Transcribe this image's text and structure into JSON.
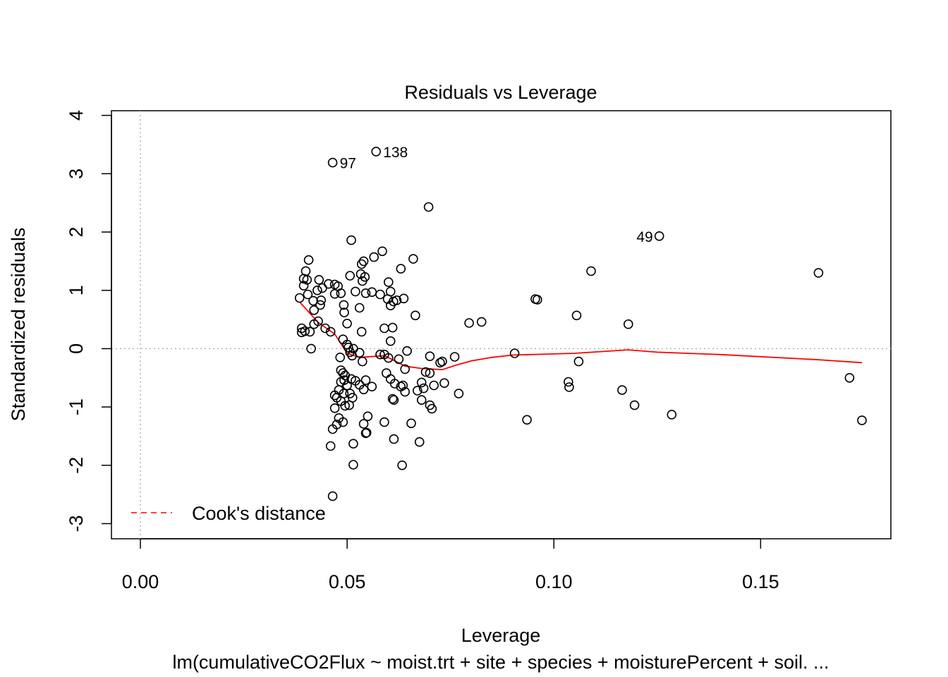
{
  "chart_data": {
    "type": "scatter",
    "title": "Residuals vs Leverage",
    "xlabel": "Leverage",
    "ylabel": "Standardized residuals",
    "subtitle": "lm(cumulativeCO2Flux ~ moist.trt + site + species + moisturePercent + soil. ...",
    "xlim": [
      -0.007,
      0.1815
    ],
    "ylim": [
      -3.26,
      4.08
    ],
    "x_ticks": [
      0.0,
      0.05,
      0.1,
      0.15
    ],
    "x_tick_labels": [
      "0.00",
      "0.05",
      "0.10",
      "0.15"
    ],
    "y_ticks": [
      -3,
      -2,
      -1,
      0,
      1,
      2,
      3,
      4
    ],
    "y_tick_labels": [
      "-3",
      "-2",
      "-1",
      "0",
      "1",
      "2",
      "3",
      "4"
    ],
    "grid": false,
    "reference_lines": {
      "x": 0,
      "y": 0,
      "style": "dotted",
      "color": "#b3b3b3"
    },
    "point_style": {
      "shape": "open-circle",
      "color": "#000000"
    },
    "points": [
      [
        0.0385,
        0.87
      ],
      [
        0.039,
        0.28
      ],
      [
        0.039,
        0.35
      ],
      [
        0.0395,
        1.08
      ],
      [
        0.0395,
        1.2
      ],
      [
        0.0398,
        0.3
      ],
      [
        0.04,
        1.33
      ],
      [
        0.0403,
        1.18
      ],
      [
        0.0405,
        0.93
      ],
      [
        0.0407,
        1.52
      ],
      [
        0.041,
        0.29
      ],
      [
        0.0413,
        0.0
      ],
      [
        0.0418,
        0.82
      ],
      [
        0.042,
        0.66
      ],
      [
        0.042,
        0.42
      ],
      [
        0.0428,
        1.0
      ],
      [
        0.043,
        0.47
      ],
      [
        0.0432,
        1.18
      ],
      [
        0.0435,
        0.75
      ],
      [
        0.0437,
        0.83
      ],
      [
        0.044,
        1.04
      ],
      [
        0.0447,
        0.35
      ],
      [
        0.0455,
        1.11
      ],
      [
        0.046,
        0.29
      ],
      [
        0.047,
        0.94
      ],
      [
        0.047,
        1.1
      ],
      [
        0.0478,
        1.07
      ],
      [
        0.0485,
        0.95
      ],
      [
        0.0492,
        0.75
      ],
      [
        0.0493,
        0.62
      ],
      [
        0.05,
        0.43
      ],
      [
        0.0507,
        1.25
      ],
      [
        0.051,
        1.86
      ],
      [
        0.052,
        0.98
      ],
      [
        0.053,
        0.7
      ],
      [
        0.0533,
        1.28
      ],
      [
        0.0535,
        1.45
      ],
      [
        0.0537,
        1.16
      ],
      [
        0.054,
        1.5
      ],
      [
        0.0543,
        1.23
      ],
      [
        0.0545,
        0.95
      ],
      [
        0.0535,
        0.29
      ],
      [
        0.056,
        0.97
      ],
      [
        0.0565,
        1.57
      ],
      [
        0.058,
        0.93
      ],
      [
        0.0585,
        1.67
      ],
      [
        0.059,
        0.35
      ],
      [
        0.0598,
        0.85
      ],
      [
        0.06,
        1.14
      ],
      [
        0.0605,
        0.98
      ],
      [
        0.0605,
        0.74
      ],
      [
        0.061,
        0.36
      ],
      [
        0.0612,
        0.81
      ],
      [
        0.062,
        0.83
      ],
      [
        0.063,
        1.37
      ],
      [
        0.0637,
        0.86
      ],
      [
        0.066,
        1.54
      ],
      [
        0.0665,
        0.57
      ],
      [
        0.0795,
        0.44
      ],
      [
        0.0825,
        0.46
      ],
      [
        0.0955,
        0.85
      ],
      [
        0.096,
        0.84
      ],
      [
        0.1055,
        0.57
      ],
      [
        0.109,
        1.33
      ],
      [
        0.118,
        0.42
      ],
      [
        0.164,
        1.3
      ],
      [
        0.0465,
        3.19
      ],
      [
        0.057,
        3.38
      ],
      [
        0.0697,
        2.43
      ],
      [
        0.1255,
        1.93
      ],
      [
        0.049,
        0.16
      ],
      [
        0.05,
        0.07
      ],
      [
        0.0503,
        0.02
      ],
      [
        0.0507,
        -0.06
      ],
      [
        0.0512,
        -0.12
      ],
      [
        0.0515,
        0.0
      ],
      [
        0.0483,
        -0.15
      ],
      [
        0.053,
        -0.07
      ],
      [
        0.0537,
        -0.22
      ],
      [
        0.058,
        -0.1
      ],
      [
        0.059,
        -0.1
      ],
      [
        0.06,
        -0.16
      ],
      [
        0.0605,
        0.13
      ],
      [
        0.0625,
        -0.18
      ],
      [
        0.064,
        -0.35
      ],
      [
        0.0645,
        -0.04
      ],
      [
        0.07,
        -0.13
      ],
      [
        0.0725,
        -0.24
      ],
      [
        0.073,
        -0.22
      ],
      [
        0.076,
        -0.14
      ],
      [
        0.0905,
        -0.08
      ],
      [
        0.106,
        -0.22
      ],
      [
        0.0485,
        -0.37
      ],
      [
        0.049,
        -0.42
      ],
      [
        0.0495,
        -0.46
      ],
      [
        0.0485,
        -0.57
      ],
      [
        0.0493,
        -0.54
      ],
      [
        0.05,
        -0.63
      ],
      [
        0.051,
        -0.52
      ],
      [
        0.052,
        -0.55
      ],
      [
        0.053,
        -0.62
      ],
      [
        0.0545,
        -0.54
      ],
      [
        0.056,
        -0.65
      ],
      [
        0.0595,
        -0.42
      ],
      [
        0.0605,
        -0.52
      ],
      [
        0.0615,
        -0.6
      ],
      [
        0.063,
        -0.65
      ],
      [
        0.0635,
        -0.63
      ],
      [
        0.064,
        -0.74
      ],
      [
        0.067,
        -0.72
      ],
      [
        0.068,
        -0.58
      ],
      [
        0.0685,
        -0.68
      ],
      [
        0.069,
        -0.4
      ],
      [
        0.07,
        -0.42
      ],
      [
        0.071,
        -0.63
      ],
      [
        0.0735,
        -0.59
      ],
      [
        0.048,
        -0.71
      ],
      [
        0.0492,
        -0.77
      ],
      [
        0.0507,
        -0.77
      ],
      [
        0.0513,
        -0.84
      ],
      [
        0.054,
        -0.7
      ],
      [
        0.047,
        -0.8
      ],
      [
        0.0475,
        -0.84
      ],
      [
        0.0485,
        -0.9
      ],
      [
        0.0495,
        -0.98
      ],
      [
        0.0505,
        -0.97
      ],
      [
        0.047,
        -1.02
      ],
      [
        0.048,
        -1.19
      ],
      [
        0.049,
        -1.26
      ],
      [
        0.0475,
        -1.3
      ],
      [
        0.0465,
        -1.38
      ],
      [
        0.054,
        -1.29
      ],
      [
        0.0547,
        -1.44
      ],
      [
        0.055,
        -1.16
      ],
      [
        0.0545,
        -1.45
      ],
      [
        0.0515,
        -1.63
      ],
      [
        0.046,
        -1.67
      ],
      [
        0.0515,
        -1.99
      ],
      [
        0.0465,
        -2.53
      ],
      [
        0.059,
        -1.26
      ],
      [
        0.061,
        -0.86
      ],
      [
        0.0613,
        -0.88
      ],
      [
        0.0613,
        -1.55
      ],
      [
        0.0633,
        -2.0
      ],
      [
        0.0655,
        -1.28
      ],
      [
        0.0675,
        -1.6
      ],
      [
        0.068,
        -0.88
      ],
      [
        0.07,
        -0.97
      ],
      [
        0.0705,
        -1.03
      ],
      [
        0.077,
        -0.77
      ],
      [
        0.0935,
        -1.22
      ],
      [
        0.1035,
        -0.57
      ],
      [
        0.1037,
        -0.66
      ],
      [
        0.1165,
        -0.71
      ],
      [
        0.1195,
        -0.97
      ],
      [
        0.1285,
        -1.13
      ],
      [
        0.1715,
        -0.5
      ],
      [
        0.1745,
        -1.23
      ]
    ],
    "point_labels": [
      {
        "text": "97",
        "x": 0.0465,
        "y": 3.19
      },
      {
        "text": "138",
        "x": 0.057,
        "y": 3.38
      },
      {
        "text": "49",
        "x": 0.1255,
        "y": 1.93,
        "side": "left"
      }
    ],
    "series": [
      {
        "name": "smoother",
        "type": "line",
        "color": "#ff0000",
        "x": [
          0.0385,
          0.043,
          0.047,
          0.05,
          0.053,
          0.057,
          0.059,
          0.061,
          0.064,
          0.068,
          0.073,
          0.076,
          0.08,
          0.085,
          0.09,
          0.095,
          0.105,
          0.118,
          0.125,
          0.14,
          0.164,
          0.1745
        ],
        "y": [
          0.8,
          0.45,
          0.25,
          -0.08,
          -0.15,
          -0.13,
          -0.12,
          -0.19,
          -0.3,
          -0.34,
          -0.36,
          -0.29,
          -0.21,
          -0.15,
          -0.11,
          -0.1,
          -0.08,
          -0.02,
          -0.06,
          -0.1,
          -0.19,
          -0.24
        ]
      }
    ],
    "legend": {
      "position": "bottom-left",
      "entries": [
        {
          "label": "Cook's distance",
          "color": "#ff0000",
          "style": "dashed"
        }
      ]
    }
  }
}
